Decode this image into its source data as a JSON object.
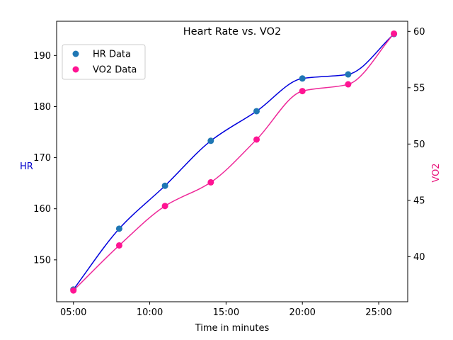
{
  "chart_data": {
    "type": "line",
    "title": "Heart Rate vs. VO2",
    "xlabel": "Time in minutes",
    "ylabel_left": "HR",
    "ylabel_right": "VO2",
    "x": [
      "05:00",
      "08:00",
      "11:00",
      "14:00",
      "17:00",
      "20:00",
      "23:00",
      "26:00"
    ],
    "x_minutes": [
      5,
      8,
      11,
      14,
      17,
      20,
      23,
      26
    ],
    "xlim": [
      3.9,
      26.9
    ],
    "x_ticks": [
      {
        "value": 5,
        "label": "05:00"
      },
      {
        "value": 10,
        "label": "10:00"
      },
      {
        "value": 15,
        "label": "15:00"
      },
      {
        "value": 20,
        "label": "20:00"
      },
      {
        "value": 25,
        "label": "25:00"
      }
    ],
    "ylim_left": [
      141.8,
      196.7
    ],
    "y_ticks_left": [
      150,
      160,
      170,
      180,
      190
    ],
    "ylim_right": [
      36.0,
      60.9
    ],
    "y_ticks_right": [
      40,
      45,
      50,
      55,
      60
    ],
    "series": [
      {
        "name": "HR Data",
        "axis": "left",
        "values": [
          144.2,
          156.1,
          164.5,
          173.3,
          179.1,
          185.5,
          186.3,
          194.2
        ],
        "marker_color": "#1f77b4",
        "line_color": "#0000dd"
      },
      {
        "name": "VO2 Data",
        "axis": "right",
        "values": [
          37.0,
          41.0,
          44.5,
          46.6,
          50.4,
          54.7,
          55.3,
          59.8
        ],
        "marker_color": "#ff1493",
        "line_color": "#ee2899"
      }
    ],
    "colors": {
      "hr_label": "#0000cc",
      "vo2_label": "#e8127a"
    },
    "legend_position": "top-left",
    "grid": false
  }
}
